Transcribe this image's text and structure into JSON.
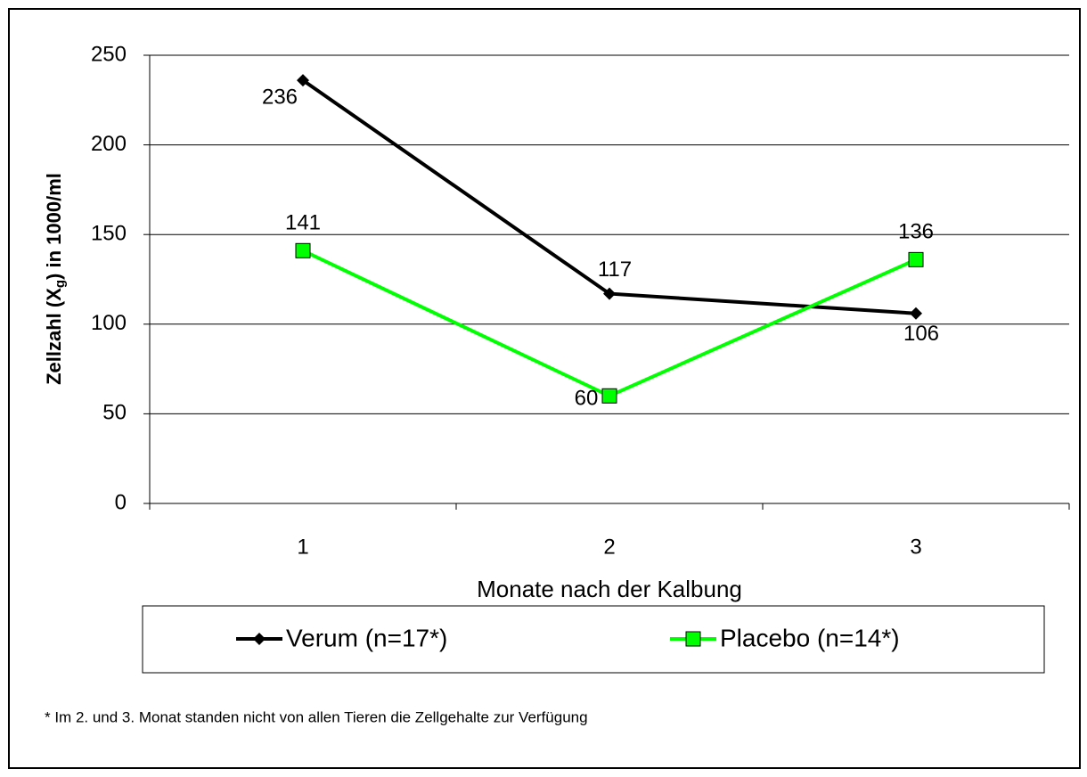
{
  "chart_data": {
    "type": "line",
    "ylabel": [
      "Zellzahl (X",
      "g",
      ") in 1000/ml"
    ],
    "xlabel": "Monate nach der Kalbung",
    "categories": [
      "1",
      "2",
      "3"
    ],
    "series": [
      {
        "name": "Verum (n=17*)",
        "color": "#000000",
        "marker": "diamond",
        "values": [
          236,
          117,
          106
        ]
      },
      {
        "name": "Placebo (n=14*)",
        "color": "#00ff00",
        "marker": "square",
        "values": [
          141,
          60,
          136
        ]
      }
    ],
    "ylim": [
      0,
      250
    ],
    "yticks": [
      0,
      50,
      100,
      150,
      200,
      250
    ],
    "grid": true,
    "legend": "bottom",
    "footnote": "* Im 2. und 3. Monat standen nicht von allen Tieren die Zellgehalte zur Verfügung"
  }
}
